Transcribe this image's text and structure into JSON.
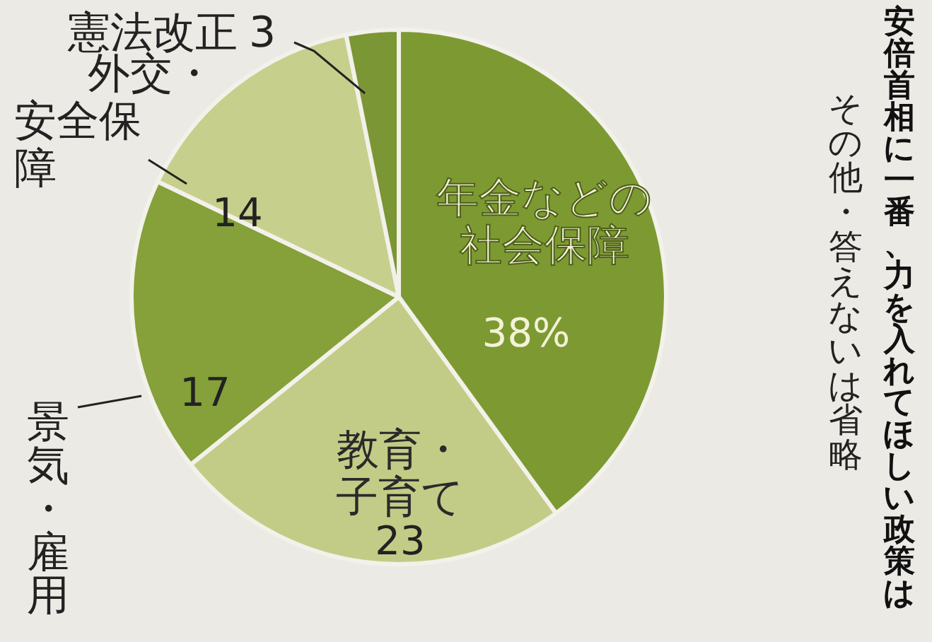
{
  "chart_data": {
    "type": "pie",
    "title": "安倍首相に一番、力を入れてほしい政策は",
    "subtitle": "その他・答えないは省略",
    "categories": [
      "年金などの社会保障",
      "教育・子育て",
      "景気・雇用",
      "外交・安全保障",
      "憲法改正"
    ],
    "values": [
      38,
      23,
      17,
      14,
      3
    ],
    "value_labels": [
      "38%",
      "23",
      "17",
      "14",
      "3"
    ],
    "colors": [
      "#7d9a32",
      "#c3cc86",
      "#86a03a",
      "#c7cf8c",
      "#7b9634"
    ]
  }
}
